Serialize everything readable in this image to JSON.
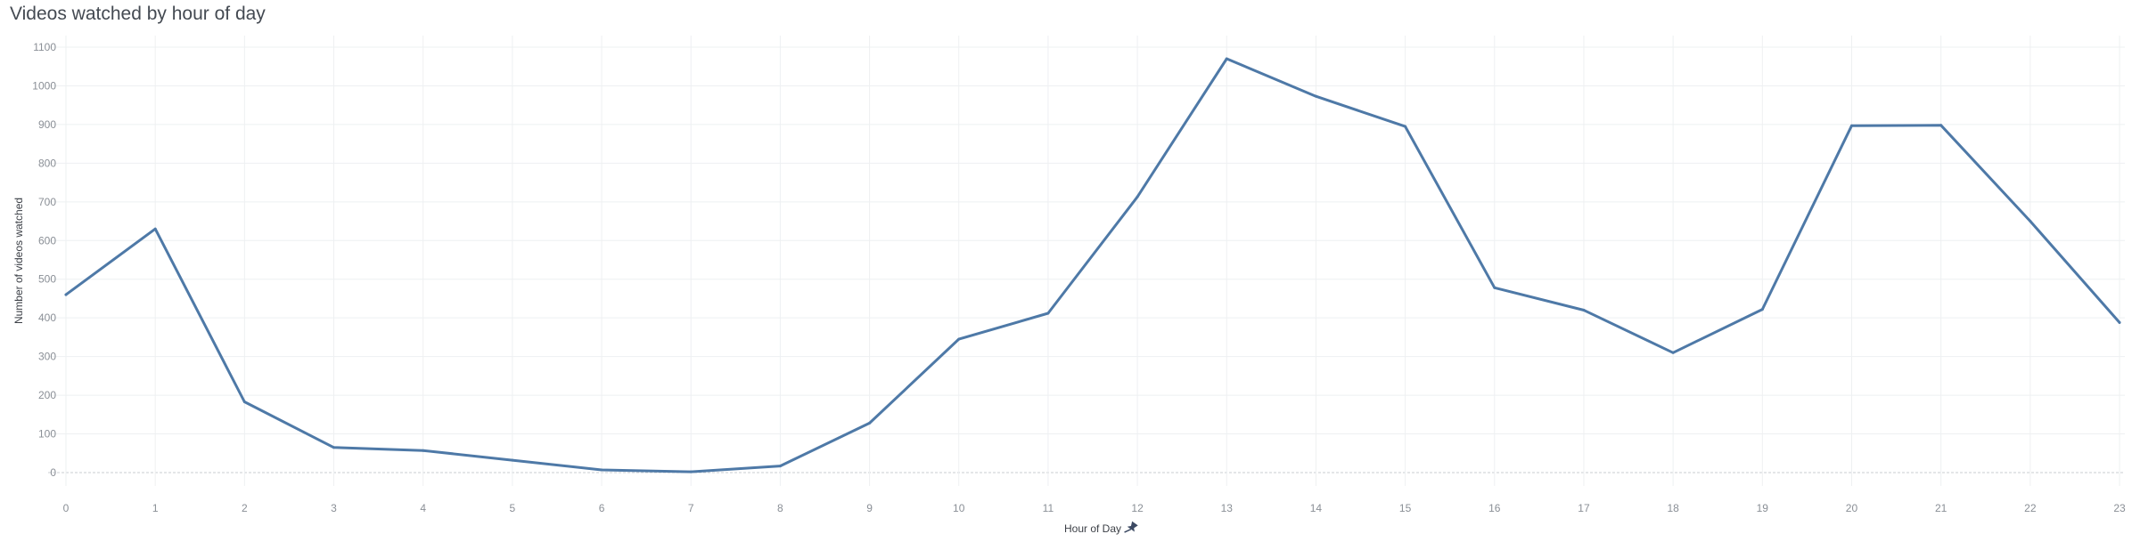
{
  "chart_data": {
    "type": "line",
    "title": "Videos watched by hour of day",
    "xlabel": "Hour of Day",
    "ylabel": "Number of videos watched",
    "x": [
      0,
      1,
      2,
      3,
      4,
      5,
      6,
      7,
      8,
      9,
      10,
      11,
      12,
      13,
      14,
      15,
      16,
      17,
      18,
      19,
      20,
      21,
      22,
      23
    ],
    "x_tick_labels": [
      "0",
      "1",
      "2",
      "3",
      "4",
      "5",
      "6",
      "7",
      "8",
      "9",
      "10",
      "11",
      "12",
      "13",
      "14",
      "15",
      "16",
      "17",
      "18",
      "19",
      "20",
      "21",
      "22",
      "23"
    ],
    "series": [
      {
        "values": [
          460,
          630,
          183,
          65,
          57,
          32,
          7,
          2,
          17,
          128,
          345,
          412,
          713,
          1070,
          973,
          895,
          478,
          420,
          310,
          422,
          897,
          898,
          650,
          388
        ]
      }
    ],
    "ylim": [
      0,
      1100
    ],
    "y_ticks": [
      0,
      100,
      200,
      300,
      400,
      500,
      600,
      700,
      800,
      900,
      1000,
      1100
    ],
    "y_tick_labels": [
      "0",
      "100",
      "200",
      "300",
      "400",
      "500",
      "600",
      "700",
      "800",
      "900",
      "1000",
      "1100"
    ],
    "grid": true,
    "colors": {
      "line": "#4e79a7",
      "grid": "#eef0f2",
      "zero_line": "#c9cdd2",
      "tick_text": "#8a8f96"
    },
    "icons": {
      "xlabel_icon": "pin-icon"
    }
  }
}
